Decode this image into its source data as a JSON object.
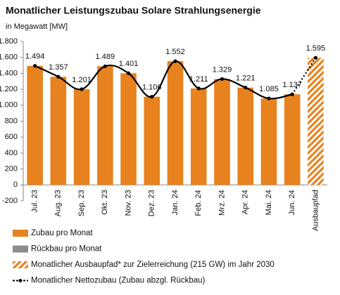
{
  "chart_data": {
    "type": "bar",
    "title": "Monatlicher Leistungszubau Solare Strahlungsenergie",
    "subtitle": "in Megawatt [MW]",
    "categories": [
      "Jul. 23",
      "Aug. 23",
      "Sep. 23",
      "Okt. 23",
      "Nov. 23",
      "Dez. 23",
      "Jan. 24",
      "Feb. 24",
      "Mrz. 24",
      "Apr. 24",
      "Mai. 24",
      "Jun. 24",
      "Ausbaupfad"
    ],
    "series": [
      {
        "name": "Zubau pro Monat",
        "type": "bar",
        "color": "#e8821e",
        "values": [
          1494,
          1357,
          1201,
          1489,
          1401,
          1106,
          1552,
          1211,
          1329,
          1221,
          1085,
          1137,
          null
        ],
        "value_labels": [
          "1.494",
          "1.357",
          "1.201",
          "1.489",
          "1.401",
          "1.106",
          "1.552",
          "1.211",
          "1.329",
          "1.221",
          "1.085",
          "1.137",
          null
        ]
      },
      {
        "name": "Rückbau pro Monat",
        "type": "bar",
        "color": "#8c8c8c",
        "values": [
          0,
          0,
          0,
          0,
          0,
          0,
          0,
          0,
          0,
          0,
          0,
          0,
          null
        ]
      },
      {
        "name": "Monatlicher Ausbaupfad* zur Zielerreichung (215 GW) im Jahr 2030",
        "type": "bar",
        "pattern": "hatch",
        "color": "#e8821e",
        "values": [
          null,
          null,
          null,
          null,
          null,
          null,
          null,
          null,
          null,
          null,
          null,
          null,
          1595
        ],
        "value_labels": [
          null,
          null,
          null,
          null,
          null,
          null,
          null,
          null,
          null,
          null,
          null,
          null,
          "1.595"
        ]
      },
      {
        "name": "Monatlicher Nettozubau (Zubau abzgl. Rückbau)",
        "type": "line",
        "color": "#000000",
        "values": [
          1494,
          1357,
          1201,
          1489,
          1401,
          1106,
          1552,
          1211,
          1329,
          1221,
          1085,
          1137,
          1595
        ]
      }
    ],
    "ylim": [
      -200,
      1800
    ],
    "yticks": [
      -200,
      0,
      200,
      400,
      600,
      800,
      {
        "value": 1000,
        "label": "1.000"
      },
      {
        "value": 1200,
        "label": "1.200"
      },
      {
        "value": 1400,
        "label": "1.400"
      },
      {
        "value": 1600,
        "label": "1.600"
      },
      {
        "value": 1800,
        "label": "1.800"
      }
    ],
    "grid": false
  }
}
